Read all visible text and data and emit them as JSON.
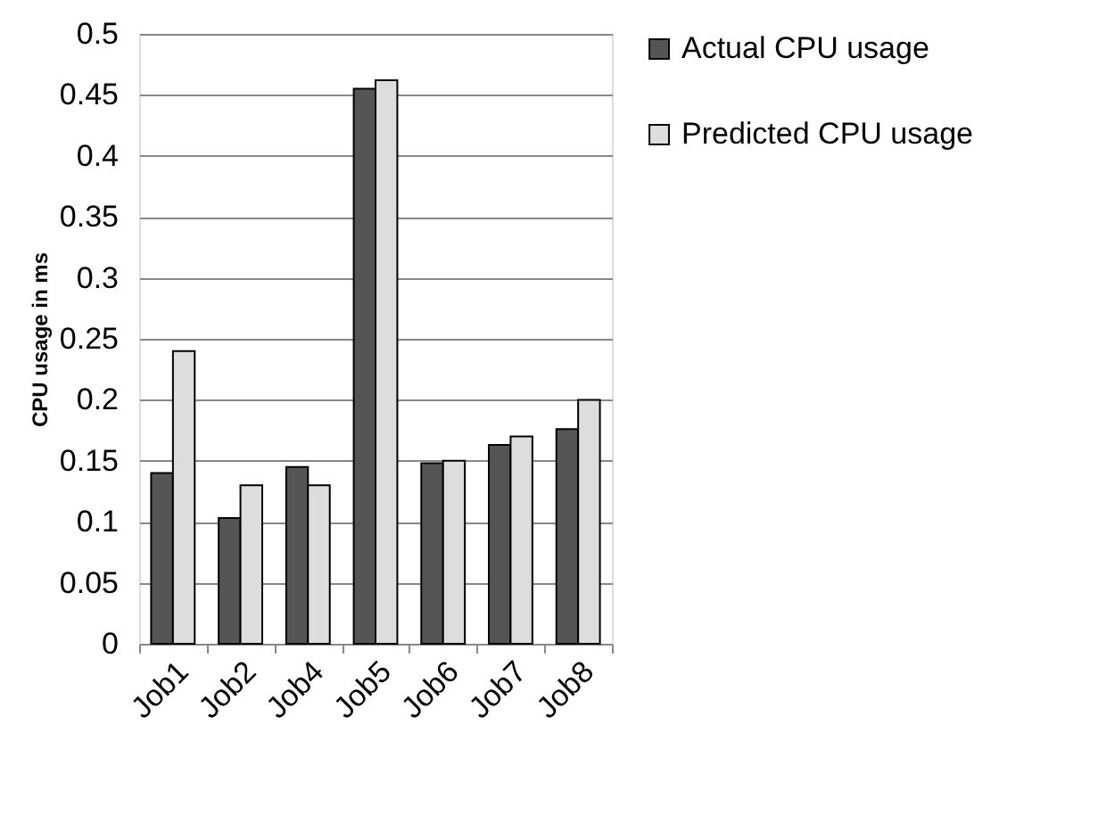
{
  "chart_data": {
    "type": "bar",
    "ylabel": "CPU usage in ms",
    "categories": [
      "Job1",
      "Job2",
      "Job4",
      "Job5",
      "Job6",
      "Job7",
      "Job8"
    ],
    "series": [
      {
        "name": "Actual CPU usage",
        "color": "#555555",
        "values": [
          0.14,
          0.103,
          0.145,
          0.455,
          0.148,
          0.163,
          0.176
        ]
      },
      {
        "name": "Predicted CPU usage",
        "color": "#dddddd",
        "values": [
          0.24,
          0.13,
          0.13,
          0.462,
          0.15,
          0.17,
          0.2
        ]
      }
    ],
    "ylim": [
      0,
      0.5
    ],
    "yticks": [
      0,
      0.05,
      0.1,
      0.15,
      0.2,
      0.25,
      0.3,
      0.35,
      0.4,
      0.45,
      0.5
    ],
    "grid": "y",
    "legend": "right"
  }
}
